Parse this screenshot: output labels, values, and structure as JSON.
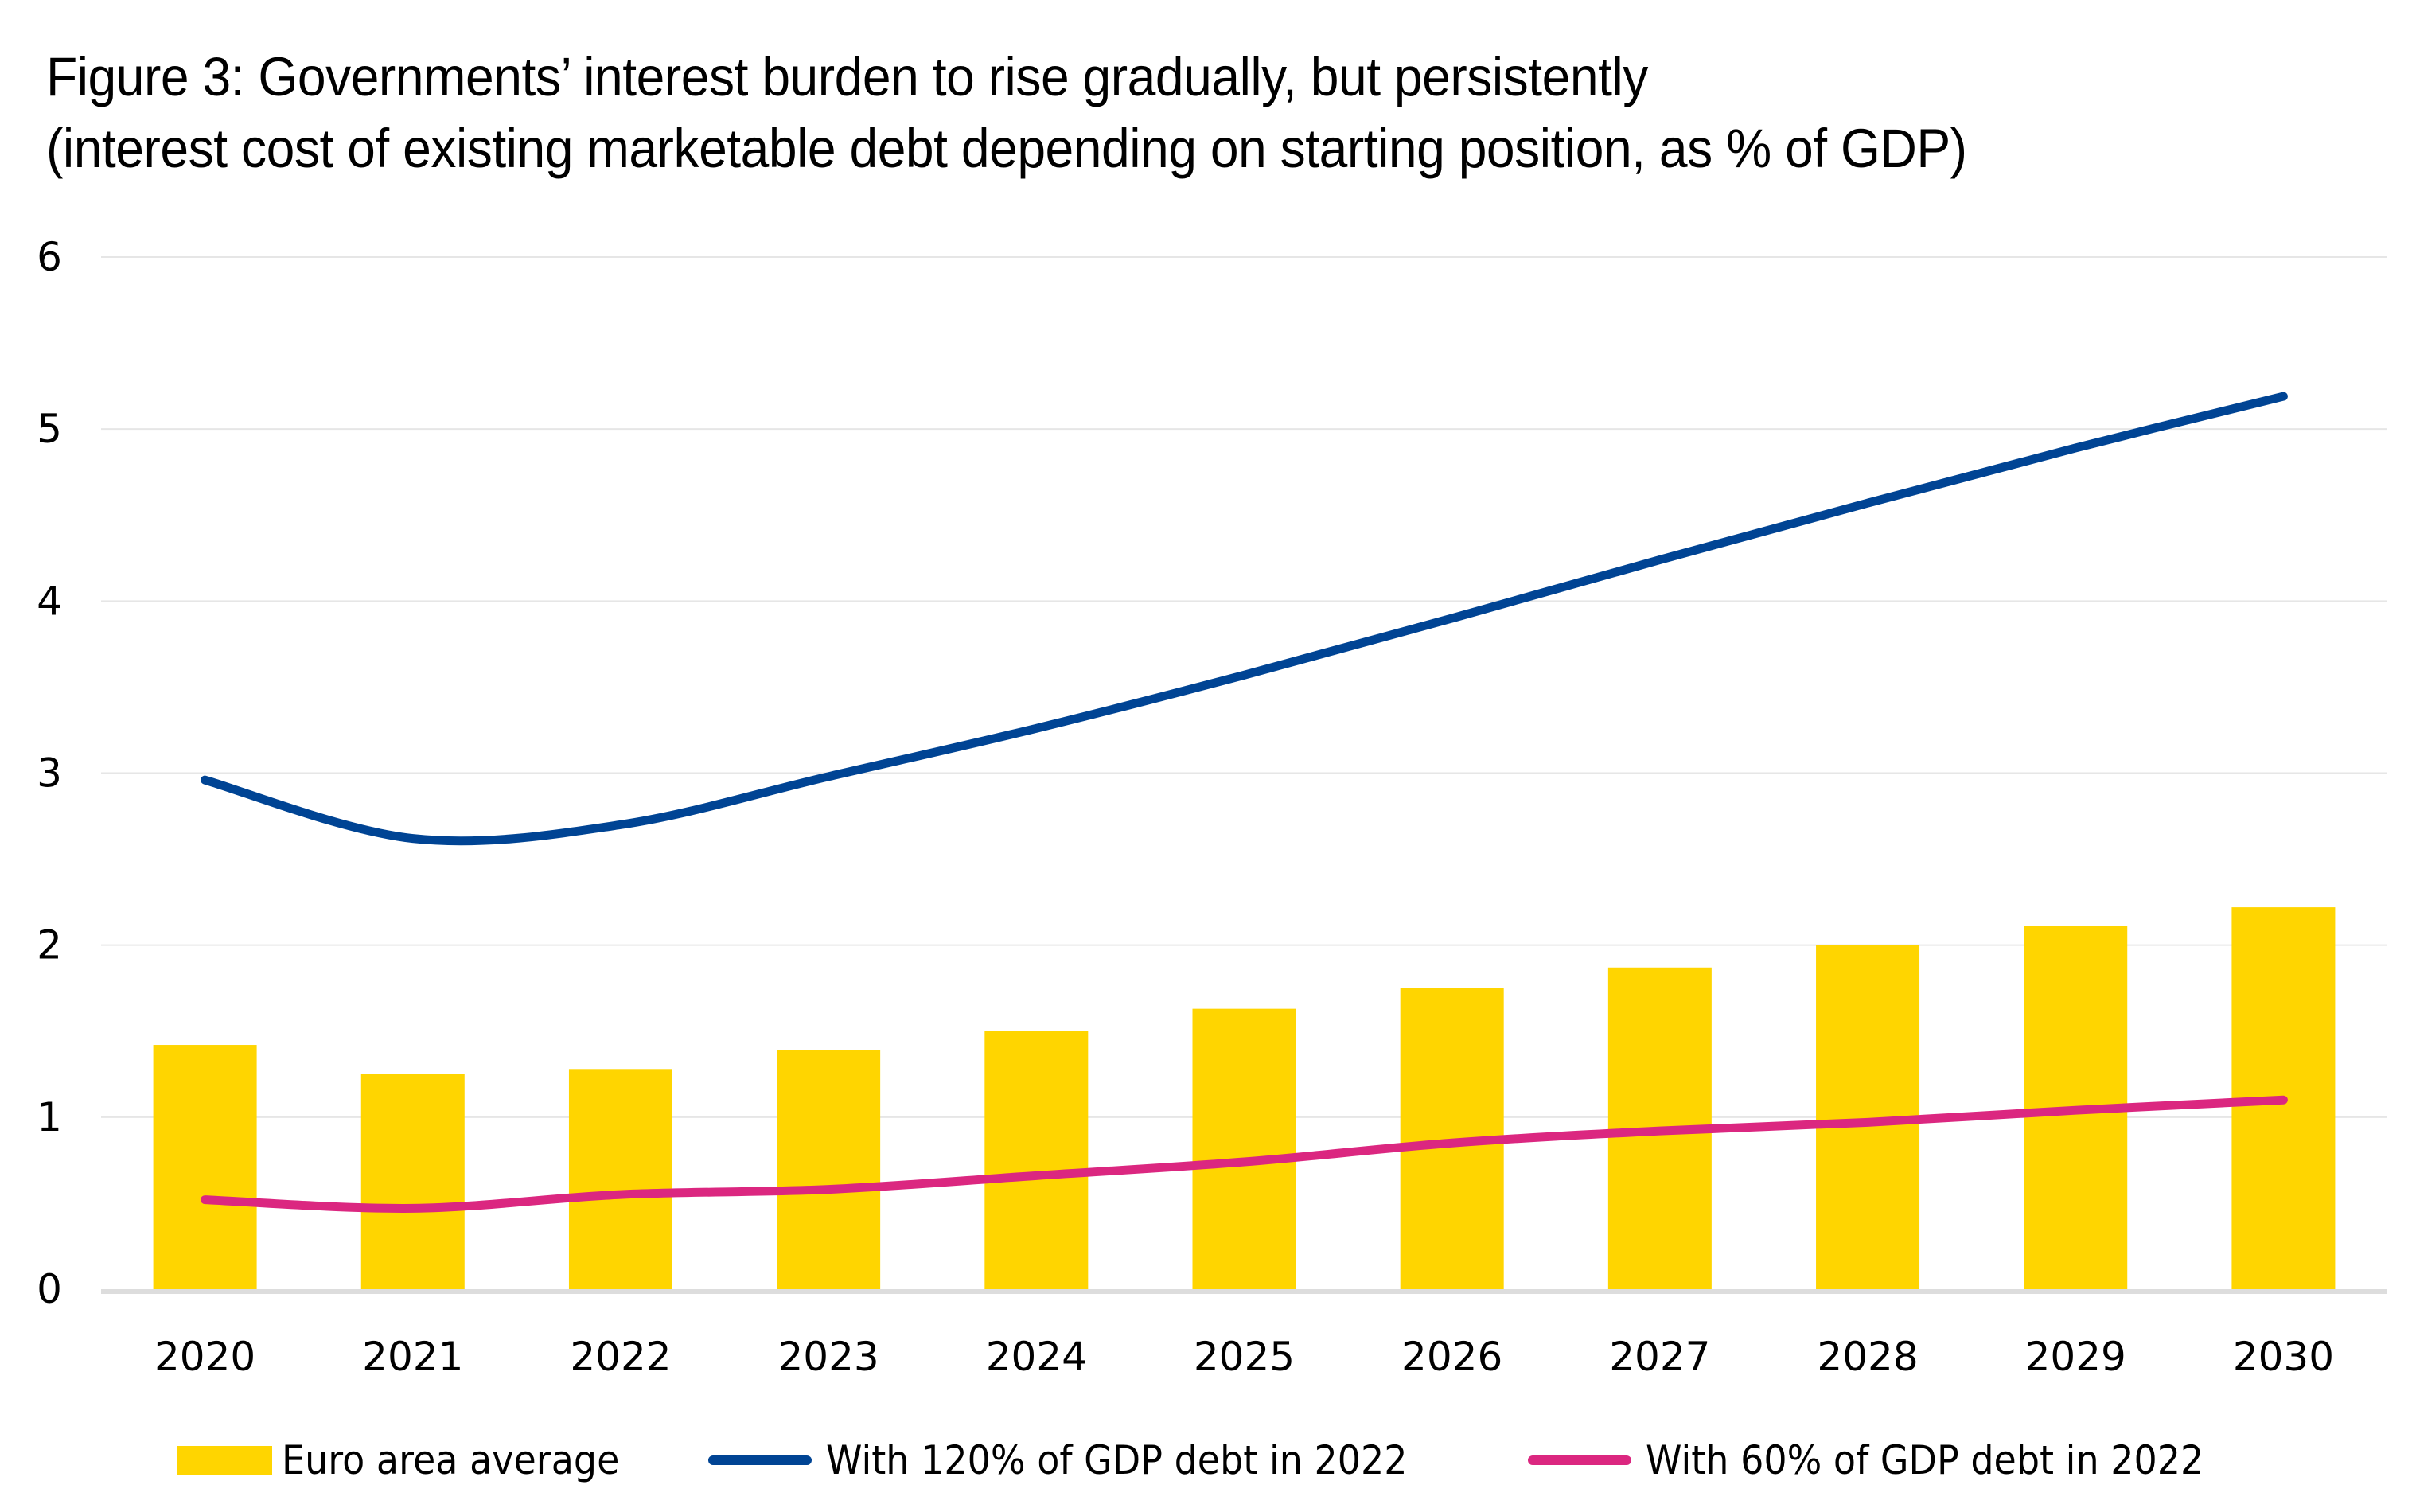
{
  "colors": {
    "bar": "#FFD500",
    "line_120": "#004494",
    "line_60": "#DB2780",
    "grid": "#E6E6E6",
    "axis": "#DDDDDD"
  },
  "chart_data": {
    "type": "bar+line",
    "title": "Figure 3: Governments’ interest burden to rise gradually, but persistently",
    "subtitle": "(interest cost of existing marketable debt depending on starting position, as % of GDP)",
    "xlabel": "",
    "ylabel": "",
    "ylim": [
      0,
      6
    ],
    "yticks": [
      "0",
      "1",
      "2",
      "3",
      "4",
      "5",
      "6"
    ],
    "grid": true,
    "legend_position": "bottom",
    "categories": [
      "2020",
      "2021",
      "2022",
      "2023",
      "2024",
      "2025",
      "2026",
      "2027",
      "2028",
      "2029",
      "2030"
    ],
    "series": [
      {
        "name": "Euro area average",
        "type": "bar",
        "values": [
          1.42,
          1.25,
          1.28,
          1.39,
          1.5,
          1.63,
          1.75,
          1.87,
          2.0,
          2.11,
          2.22
        ]
      },
      {
        "name": "With 120% of GDP debt in 2022",
        "type": "line",
        "values": [
          2.96,
          2.62,
          2.7,
          2.98,
          3.26,
          3.57,
          3.9,
          4.24,
          4.57,
          4.89,
          5.19
        ]
      },
      {
        "name": "With 60% of GDP debt in 2022",
        "type": "line",
        "values": [
          0.52,
          0.47,
          0.55,
          0.58,
          0.66,
          0.74,
          0.85,
          0.92,
          0.97,
          1.04,
          1.1
        ]
      }
    ]
  }
}
